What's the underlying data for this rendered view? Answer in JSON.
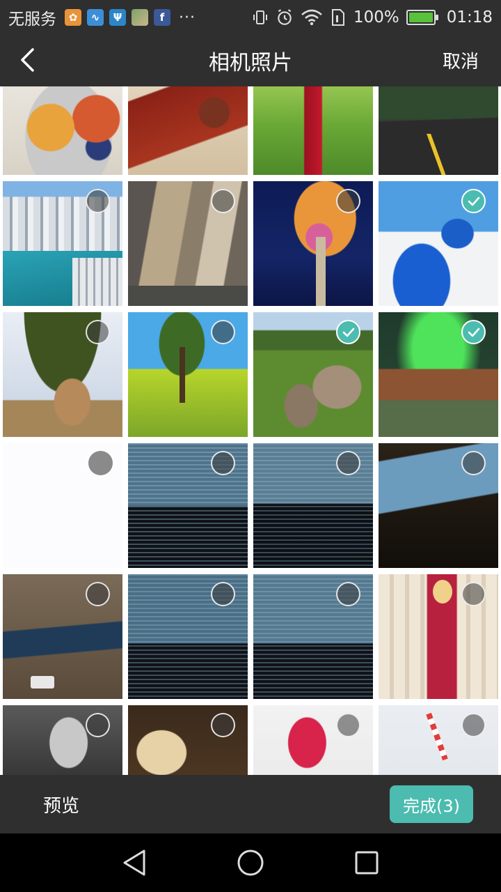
{
  "status_bar": {
    "carrier": "无服务",
    "apps": [
      {
        "icon": "squirrel-app-icon",
        "glyph": "🐿",
        "color": "#e8943a"
      },
      {
        "icon": "heartbeat-app-icon",
        "glyph": "~",
        "color": "#3c8fd6"
      },
      {
        "icon": "usb-icon",
        "glyph": "Ψ",
        "color": "#2b86c9"
      },
      {
        "icon": "photo-thumb-icon",
        "glyph": "",
        "color": "#7ea26c"
      },
      {
        "icon": "facebook-icon",
        "glyph": "f",
        "color": "#3b5998"
      }
    ],
    "more": "···",
    "battery_percent": "100%",
    "time": "01:18"
  },
  "title_bar": {
    "title": "相机照片",
    "cancel_label": "取消"
  },
  "photos": [
    {
      "name": "photo-pears",
      "state": "none"
    },
    {
      "name": "photo-tea-set",
      "state": "none"
    },
    {
      "name": "photo-lantern",
      "state": "none"
    },
    {
      "name": "photo-road",
      "state": "none"
    },
    {
      "name": "photo-city-river",
      "state": "unchecked"
    },
    {
      "name": "photo-metal-building",
      "state": "unchecked"
    },
    {
      "name": "photo-supertree",
      "state": "unchecked"
    },
    {
      "name": "photo-santorini",
      "state": "checked"
    },
    {
      "name": "photo-pines-dome",
      "state": "unchecked"
    },
    {
      "name": "photo-tree-field",
      "state": "unchecked"
    },
    {
      "name": "photo-stream-mountain",
      "state": "checked"
    },
    {
      "name": "photo-aurora",
      "state": "checked"
    },
    {
      "name": "photo-blank",
      "state": "plain"
    },
    {
      "name": "photo-code-screen-1",
      "state": "unchecked"
    },
    {
      "name": "photo-code-screen-2",
      "state": "unchecked"
    },
    {
      "name": "photo-laptop-dark",
      "state": "unchecked"
    },
    {
      "name": "photo-laptop-desk",
      "state": "unchecked"
    },
    {
      "name": "photo-code-screen-3",
      "state": "unchecked"
    },
    {
      "name": "photo-code-screen-4",
      "state": "unchecked"
    },
    {
      "name": "photo-woman-red-dress",
      "state": "unchecked"
    },
    {
      "name": "photo-man-sunglasses",
      "state": "unchecked"
    },
    {
      "name": "photo-macarons",
      "state": "unchecked"
    },
    {
      "name": "photo-flower",
      "state": "unchecked"
    },
    {
      "name": "photo-pink-drink",
      "state": "unchecked"
    }
  ],
  "bottom_bar": {
    "preview_label": "预览",
    "done_label": "完成(3)"
  },
  "colors": {
    "accent": "#4cbcb0",
    "bar_bg": "#2f2f2f"
  }
}
